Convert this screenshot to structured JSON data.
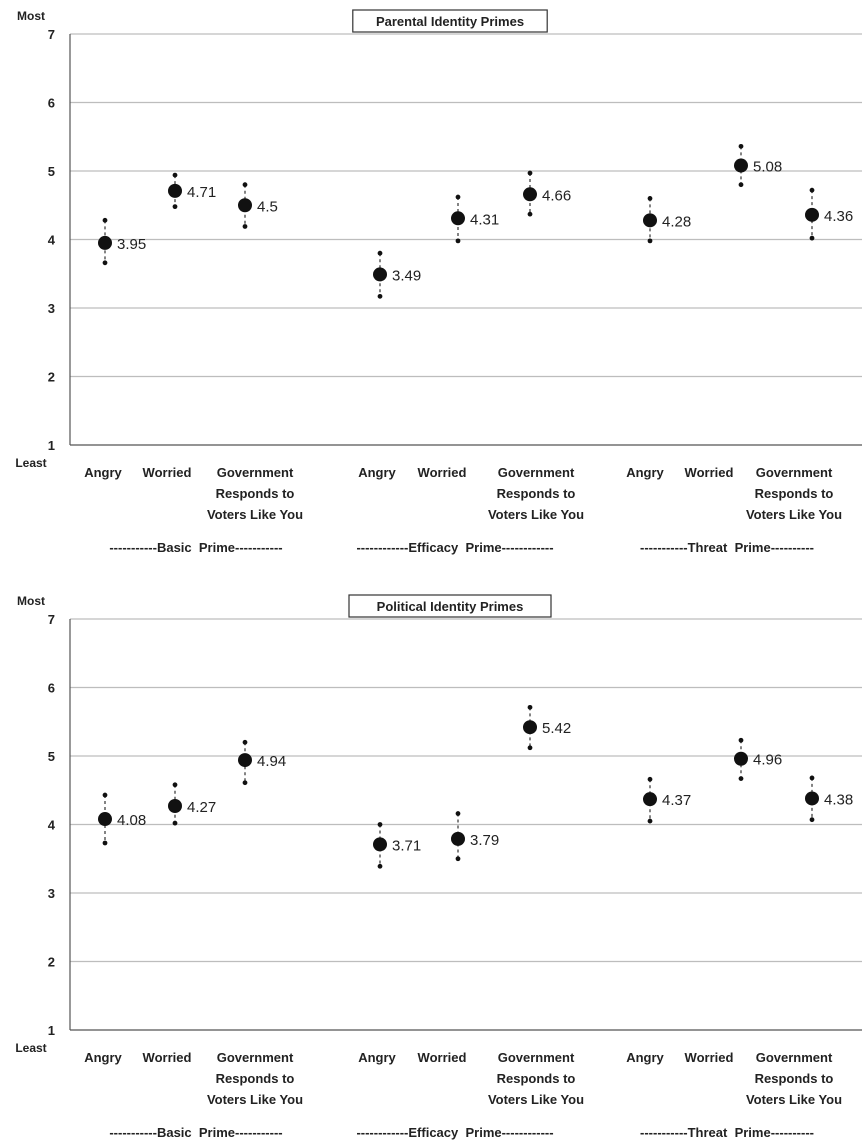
{
  "chart_data": [
    {
      "type": "scatter",
      "title": "Parental Identity Primes",
      "ylim": [
        1,
        7
      ],
      "yticks": [
        1,
        2,
        3,
        4,
        5,
        6,
        7
      ],
      "y_top_label": "Most",
      "y_bottom_label": "Least",
      "grid": true,
      "categories": [
        "Angry",
        "Worried",
        "Government Responds to Voters Like You"
      ],
      "groups": [
        {
          "name": "-----------Basic  Prime-----------",
          "points": [
            {
              "category": "Angry",
              "value": 3.95,
              "label": "3.95",
              "low": 3.66,
              "high": 4.28
            },
            {
              "category": "Worried",
              "value": 4.71,
              "label": "4.71",
              "low": 4.48,
              "high": 4.94
            },
            {
              "category": "Government Responds to Voters Like You",
              "value": 4.5,
              "label": "4.5",
              "low": 4.19,
              "high": 4.8
            }
          ]
        },
        {
          "name": "------------Efficacy  Prime------------",
          "points": [
            {
              "category": "Angry",
              "value": 3.49,
              "label": "3.49",
              "low": 3.17,
              "high": 3.8
            },
            {
              "category": "Worried",
              "value": 4.31,
              "label": "4.31",
              "low": 3.98,
              "high": 4.62
            },
            {
              "category": "Government Responds to Voters Like You",
              "value": 4.66,
              "label": "4.66",
              "low": 4.37,
              "high": 4.97
            }
          ]
        },
        {
          "name": "-----------Threat  Prime----------",
          "points": [
            {
              "category": "Angry",
              "value": 4.28,
              "label": "4.28",
              "low": 3.98,
              "high": 4.6
            },
            {
              "category": "Worried",
              "value": 5.08,
              "label": "5.08",
              "low": 4.8,
              "high": 5.36
            },
            {
              "category": "Government Responds to Voters Like You",
              "value": 4.36,
              "label": "4.36",
              "low": 4.02,
              "high": 4.72
            }
          ]
        }
      ]
    },
    {
      "type": "scatter",
      "title": "Political Identity Primes",
      "ylim": [
        1,
        7
      ],
      "yticks": [
        1,
        2,
        3,
        4,
        5,
        6,
        7
      ],
      "y_top_label": "Most",
      "y_bottom_label": "Least",
      "grid": true,
      "categories": [
        "Angry",
        "Worried",
        "Government Responds to Voters Like You"
      ],
      "groups": [
        {
          "name": "-----------Basic  Prime-----------",
          "points": [
            {
              "category": "Angry",
              "value": 4.08,
              "label": "4.08",
              "low": 3.73,
              "high": 4.43
            },
            {
              "category": "Worried",
              "value": 4.27,
              "label": "4.27",
              "low": 4.02,
              "high": 4.58
            },
            {
              "category": "Government Responds to Voters Like You",
              "value": 4.94,
              "label": "4.94",
              "low": 4.61,
              "high": 5.2
            }
          ]
        },
        {
          "name": "------------Efficacy  Prime------------",
          "points": [
            {
              "category": "Angry",
              "value": 3.71,
              "label": "3.71",
              "low": 3.39,
              "high": 4.0
            },
            {
              "category": "Worried",
              "value": 3.79,
              "label": "3.79",
              "low": 3.5,
              "high": 4.16
            },
            {
              "category": "Government Responds to Voters Like You",
              "value": 5.42,
              "label": "5.42",
              "low": 5.12,
              "high": 5.71
            }
          ]
        },
        {
          "name": "-----------Threat  Prime----------",
          "points": [
            {
              "category": "Angry",
              "value": 4.37,
              "label": "4.37",
              "low": 4.05,
              "high": 4.66
            },
            {
              "category": "Worried",
              "value": 4.96,
              "label": "4.96",
              "low": 4.67,
              "high": 5.23
            },
            {
              "category": "Government Responds to Voters Like You",
              "value": 4.38,
              "label": "4.38",
              "low": 4.07,
              "high": 4.68
            }
          ]
        }
      ]
    }
  ]
}
